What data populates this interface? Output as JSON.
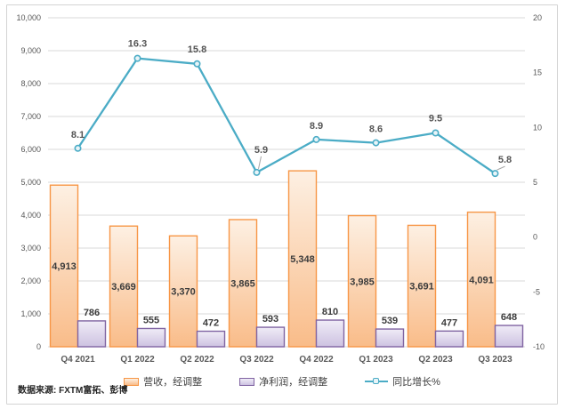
{
  "chart_data": {
    "type": "bar",
    "subtype": "combo bar + line, dual axis",
    "title": "",
    "categories": [
      "Q4 2021",
      "Q1 2022",
      "Q2 2022",
      "Q3 2022",
      "Q4 2022",
      "Q1 2023",
      "Q2 2023",
      "Q3 2023"
    ],
    "series": [
      {
        "name": "营收，经调整",
        "chart": "bar",
        "axis": "left",
        "values": [
          4913,
          3669,
          3370,
          3865,
          5348,
          3985,
          3691,
          4091
        ],
        "labels": [
          "4,913",
          "3,669",
          "3,370",
          "3,865",
          "5,348",
          "3,985",
          "3,691",
          "4,091"
        ],
        "label_position": "inside-center"
      },
      {
        "name": "净利润，经调整",
        "chart": "bar",
        "axis": "left",
        "values": [
          786,
          555,
          472,
          593,
          810,
          539,
          477,
          648
        ],
        "labels": [
          "786",
          "555",
          "472",
          "593",
          "810",
          "539",
          "477",
          "648"
        ],
        "label_position": "outside-top"
      },
      {
        "name": "同比增长%",
        "chart": "line",
        "axis": "right",
        "values": [
          8.1,
          16.3,
          15.8,
          5.9,
          8.9,
          8.6,
          9.5,
          5.8
        ],
        "labels": [
          "8.1",
          "16.3",
          "15.8",
          "5.9",
          "8.9",
          "8.6",
          "9.5",
          "5.8"
        ],
        "label_offsets": [
          [
            0,
            -12
          ],
          [
            0,
            -13
          ],
          [
            0,
            -13
          ],
          [
            5,
            -22
          ],
          [
            0,
            -12
          ],
          [
            0,
            -12
          ],
          [
            0,
            -13
          ],
          [
            11,
            -12
          ]
        ],
        "leaders": [
          false,
          false,
          false,
          true,
          false,
          false,
          false,
          true
        ]
      }
    ],
    "left_axis": {
      "min": 0,
      "max": 10000,
      "step": 1000,
      "tick_values": [
        10000,
        9000,
        8000,
        7000,
        6000,
        5000,
        4000,
        3000,
        2000,
        1000,
        0
      ],
      "ticks": [
        "10,000",
        "9,000",
        "8,000",
        "7,000",
        "6,000",
        "5,000",
        "4,000",
        "3,000",
        "2,000",
        "1,000",
        "0"
      ]
    },
    "right_axis": {
      "min": -10,
      "max": 20,
      "step": 5,
      "tick_values": [
        20,
        15,
        10,
        5,
        0,
        -5,
        -10
      ],
      "ticks": [
        "20",
        "15",
        "10",
        "5",
        "0",
        "-5",
        "-10"
      ]
    },
    "grid": "horizontal gridlines on",
    "legend_position": "bottom"
  },
  "source_note": "数据来源: FXTM富拓、彭博",
  "colors": {
    "revenue_fill_top": "#FDF0E3",
    "revenue_fill_bottom": "#F9BC89",
    "revenue_border": "#F79646",
    "profit_fill_top": "#F0ECF7",
    "profit_fill_bottom": "#CDC2E1",
    "profit_border": "#8064A2",
    "line": "#4BACC6",
    "grid": "#D9D9D9",
    "axis_text": "#595959"
  }
}
